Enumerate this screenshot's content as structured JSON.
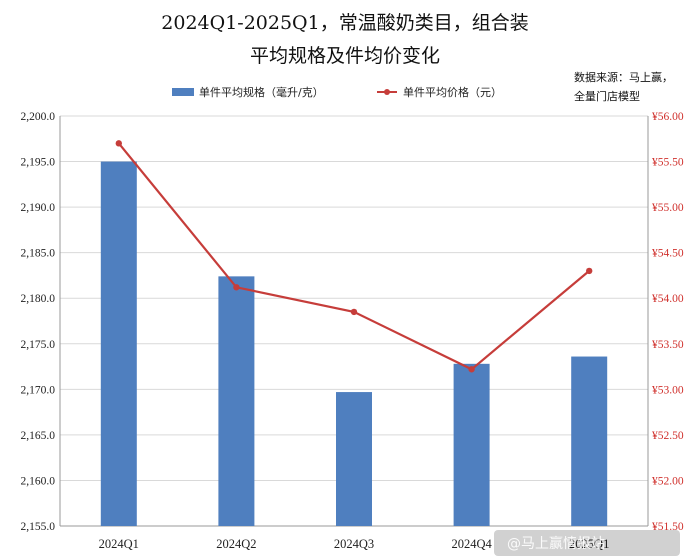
{
  "chart_data": {
    "type": "bar+line",
    "title_line1": "2024Q1-2025Q1，常温酸奶类目，组合装",
    "title_line2": "平均规格及件均价变化",
    "source_line1": "数据来源：马上赢，",
    "source_line2": "全量门店模型",
    "categories": [
      "2024Q1",
      "2024Q2",
      "2024Q3",
      "2024Q4",
      "2025Q1"
    ],
    "series": [
      {
        "name": "单件平均规格（毫升/克）",
        "type": "bar",
        "axis": "left",
        "color": "#4f7fbf",
        "values": [
          2195.0,
          2182.4,
          2169.7,
          2172.8,
          2173.6
        ]
      },
      {
        "name": "单件平均价格（元）",
        "type": "line",
        "axis": "right",
        "color": "#c63d3a",
        "values": [
          55.7,
          54.12,
          53.85,
          53.22,
          54.3
        ]
      }
    ],
    "left_axis": {
      "min": 2155,
      "max": 2200,
      "step": 5,
      "ticks": [
        "2,155.0",
        "2,160.0",
        "2,165.0",
        "2,170.0",
        "2,175.0",
        "2,180.0",
        "2,185.0",
        "2,190.0",
        "2,195.0",
        "2,200.0"
      ]
    },
    "right_axis": {
      "min": 51.5,
      "max": 56.0,
      "step": 0.5,
      "color": "#d0312d",
      "ticks": [
        "¥51.50",
        "¥52.00",
        "¥52.50",
        "¥53.00",
        "¥53.50",
        "¥54.00",
        "¥54.50",
        "¥55.00",
        "¥55.50",
        "¥56.00"
      ]
    },
    "grid": true,
    "legend_position": "top"
  },
  "watermark": "@马上赢情报站"
}
